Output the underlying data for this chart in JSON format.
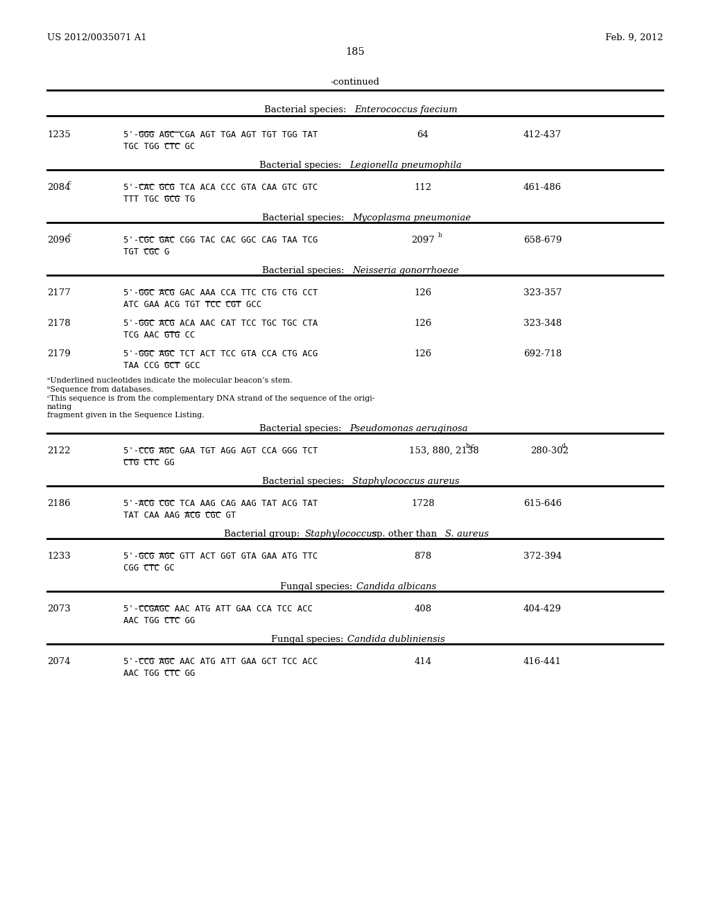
{
  "header_left": "US 2012/0035071 A1",
  "header_right": "Feb. 9, 2012",
  "page_number": "185",
  "continued": "-continued",
  "background": "#ffffff"
}
